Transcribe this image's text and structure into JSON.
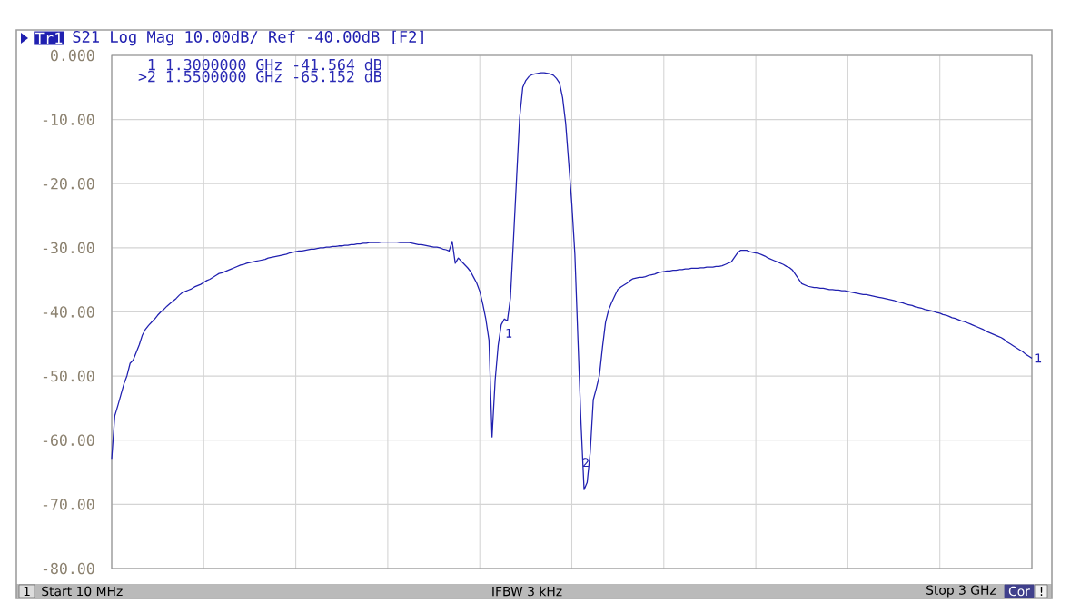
{
  "chart_data": {
    "type": "line",
    "title": "S21 Log Mag 10.00dB/ Ref -40.00dB [F2]",
    "categories": [
      null,
      null,
      null,
      null,
      null,
      null,
      null,
      null,
      null,
      null,
      null,
      null,
      null,
      null,
      null,
      null,
      null,
      null,
      null,
      null,
      null,
      null,
      null,
      null,
      null,
      null,
      null,
      null,
      null,
      null,
      null,
      null,
      null,
      null,
      null,
      null,
      null,
      null,
      null,
      null,
      null,
      null,
      null,
      null,
      null,
      null,
      null,
      null,
      null,
      null,
      null,
      null,
      null,
      null,
      null,
      null,
      null,
      null,
      null,
      null,
      null,
      null,
      null,
      null,
      null,
      null,
      null,
      null,
      null,
      null,
      null,
      null,
      null,
      null,
      null,
      null,
      null,
      null,
      null,
      null,
      null,
      null,
      null,
      null,
      null,
      null,
      null,
      null,
      null,
      null,
      null,
      null,
      null,
      null,
      null,
      null,
      null,
      null,
      null,
      null,
      null,
      null,
      null,
      null,
      null,
      null,
      null,
      null,
      null,
      null,
      null,
      null,
      null,
      null,
      null,
      null,
      null,
      null,
      null,
      null,
      null,
      null,
      null,
      null,
      null,
      null,
      null,
      null,
      null,
      null,
      null,
      null,
      null,
      null,
      null,
      null,
      null,
      null,
      null,
      null,
      null,
      null,
      null,
      null,
      null,
      null,
      null,
      null,
      null,
      null,
      null,
      null,
      null,
      null,
      null,
      null,
      null,
      null,
      null,
      null,
      null,
      null,
      null,
      null,
      null,
      null,
      null,
      null,
      null,
      null,
      null,
      null,
      null,
      null,
      null,
      null,
      null,
      null,
      null,
      null,
      null,
      null,
      null,
      null,
      null,
      null,
      null,
      null,
      null,
      null,
      null,
      null,
      null,
      null,
      null,
      null,
      null,
      null,
      null,
      null,
      null,
      null,
      null,
      null,
      null,
      null,
      null,
      null,
      null,
      null,
      null,
      null,
      null,
      null,
      null,
      null,
      null,
      null,
      null,
      null,
      null,
      null,
      null,
      null,
      null,
      null,
      null,
      null,
      null,
      null,
      null,
      null,
      null,
      null,
      null,
      null,
      null,
      null,
      null,
      null,
      null,
      null,
      null,
      null,
      null,
      null,
      null,
      null,
      null,
      null,
      null,
      null,
      null,
      null,
      null,
      null,
      null,
      null,
      null,
      null,
      null,
      null,
      null,
      null,
      null,
      null,
      null,
      null,
      null,
      null,
      null,
      null,
      null,
      null,
      null,
      null,
      null,
      null,
      null,
      null,
      null,
      null,
      null,
      null,
      null,
      null,
      null,
      null,
      null,
      null,
      null,
      null,
      null,
      null,
      null,
      null,
      null,
      null,
      null,
      null,
      null
    ],
    "series": [
      {
        "name": "Tr1",
        "color": "#2020b0",
        "values": [
          -62.9,
          -56.2,
          -54.6,
          -52.9,
          -51.2,
          -49.9,
          -48.0,
          -47.5,
          -46.3,
          -45.1,
          -43.6,
          -42.7,
          -42.1,
          -41.6,
          -41.1,
          -40.5,
          -40.0,
          -39.6,
          -39.1,
          -38.7,
          -38.3,
          -37.9,
          -37.4,
          -37.0,
          -36.8,
          -36.6,
          -36.4,
          -36.1,
          -35.9,
          -35.7,
          -35.4,
          -35.1,
          -34.9,
          -34.6,
          -34.3,
          -34.0,
          -33.9,
          -33.7,
          -33.5,
          -33.3,
          -33.1,
          -32.9,
          -32.7,
          -32.6,
          -32.4,
          -32.3,
          -32.2,
          -32.1,
          -32.0,
          -31.9,
          -31.8,
          -31.6,
          -31.5,
          -31.4,
          -31.3,
          -31.2,
          -31.1,
          -31.0,
          -30.8,
          -30.7,
          -30.6,
          -30.5,
          -30.5,
          -30.4,
          -30.3,
          -30.2,
          -30.2,
          -30.1,
          -30.0,
          -30.0,
          -29.9,
          -29.9,
          -29.8,
          -29.8,
          -29.7,
          -29.7,
          -29.6,
          -29.6,
          -29.5,
          -29.5,
          -29.4,
          -29.4,
          -29.3,
          -29.3,
          -29.2,
          -29.2,
          -29.2,
          -29.2,
          -29.1,
          -29.1,
          -29.1,
          -29.1,
          -29.1,
          -29.1,
          -29.2,
          -29.2,
          -29.2,
          -29.2,
          -29.3,
          -29.4,
          -29.5,
          -29.5,
          -29.6,
          -29.7,
          -29.8,
          -29.9,
          -29.9,
          -30.0,
          -30.2,
          -30.3,
          -30.5,
          -29.0,
          -32.4,
          -31.6,
          -32.1,
          -32.6,
          -33.1,
          -33.7,
          -34.6,
          -35.5,
          -36.8,
          -38.8,
          -41.2,
          -44.4,
          -59.5,
          -50.7,
          -45.2,
          -42.0,
          -41.1,
          -41.4,
          -37.8,
          -28.6,
          -19.1,
          -9.7,
          -5.0,
          -3.9,
          -3.3,
          -3.0,
          -2.9,
          -2.8,
          -2.7,
          -2.7,
          -2.8,
          -2.9,
          -3.1,
          -3.6,
          -4.3,
          -6.6,
          -10.6,
          -16.8,
          -23.1,
          -31.0,
          -44.3,
          -57.3,
          -67.7,
          -66.6,
          -61.9,
          -53.7,
          -51.9,
          -49.9,
          -45.5,
          -41.6,
          -39.7,
          -38.5,
          -37.5,
          -36.5,
          -36.1,
          -35.8,
          -35.5,
          -35.1,
          -34.8,
          -34.7,
          -34.6,
          -34.6,
          -34.5,
          -34.3,
          -34.2,
          -34.1,
          -33.9,
          -33.8,
          -33.7,
          -33.6,
          -33.6,
          -33.5,
          -33.5,
          -33.4,
          -33.4,
          -33.3,
          -33.3,
          -33.2,
          -33.2,
          -33.2,
          -33.1,
          -33.1,
          -33.0,
          -33.0,
          -33.0,
          -32.9,
          -32.9,
          -32.8,
          -32.6,
          -32.4,
          -32.2,
          -31.5,
          -30.8,
          -30.4,
          -30.4,
          -30.4,
          -30.6,
          -30.7,
          -30.8,
          -30.9,
          -31.1,
          -31.3,
          -31.6,
          -31.8,
          -32.0,
          -32.2,
          -32.4,
          -32.6,
          -32.9,
          -33.1,
          -33.5,
          -34.2,
          -34.9,
          -35.6,
          -35.8,
          -36.0,
          -36.1,
          -36.2,
          -36.2,
          -36.3,
          -36.3,
          -36.4,
          -36.5,
          -36.5,
          -36.6,
          -36.6,
          -36.7,
          -36.7,
          -36.8,
          -36.9,
          -37.0,
          -37.1,
          -37.2,
          -37.3,
          -37.3,
          -37.4,
          -37.5,
          -37.6,
          -37.7,
          -37.8,
          -37.9,
          -38.0,
          -38.1,
          -38.2,
          -38.4,
          -38.5,
          -38.6,
          -38.8,
          -38.9,
          -39.0,
          -39.2,
          -39.3,
          -39.4,
          -39.6,
          -39.7,
          -39.8,
          -39.9,
          -40.1,
          -40.2,
          -40.4,
          -40.5,
          -40.7,
          -40.9,
          -41.0,
          -41.2,
          -41.4,
          -41.5,
          -41.7,
          -41.9,
          -42.1,
          -42.3,
          -42.5,
          -42.7,
          -43.0,
          -43.2,
          -43.4,
          -43.6,
          -43.8,
          -44.0,
          -44.3,
          -44.7,
          -45.0,
          -45.3,
          -45.6,
          -45.9,
          -46.2,
          -46.6,
          -46.9,
          -47.2
        ]
      }
    ],
    "ylim": [
      -80,
      0
    ],
    "yticks": [
      {
        "value": 0,
        "label": "0.000"
      },
      {
        "value": -10,
        "label": "-10.00"
      },
      {
        "value": -20,
        "label": "-20.00"
      },
      {
        "value": -30,
        "label": "-30.00"
      },
      {
        "value": -40,
        "label": "-40.00"
      },
      {
        "value": -50,
        "label": "-50.00"
      },
      {
        "value": -60,
        "label": "-60.00"
      },
      {
        "value": -70,
        "label": "-70.00"
      },
      {
        "value": -80,
        "label": "-80.00"
      }
    ],
    "tick_labels": "y",
    "grid": true,
    "legend": "top left",
    "annotations": [
      "1 1.3000000 GHz -41.564 dB",
      ">2 1.5500000 GHz -65.152 dB",
      "1",
      "2",
      "1",
      "1",
      "Start 10 MHz",
      "IFBW 3 kHz",
      "Stop 3 GHz",
      "Cor",
      "!"
    ]
  }
}
